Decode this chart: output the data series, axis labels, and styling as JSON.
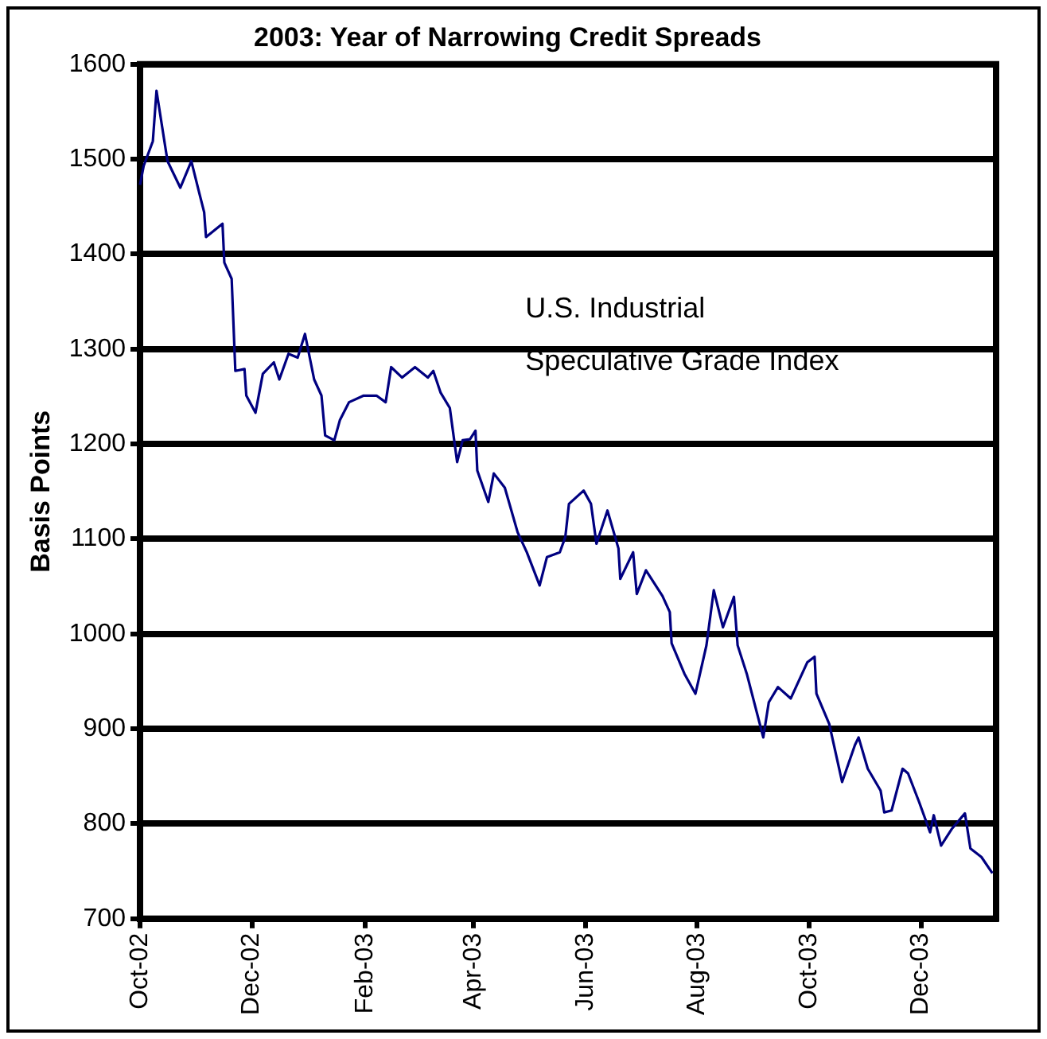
{
  "chart_data": {
    "type": "line",
    "title": "2003: Year of Narrowing Credit Spreads",
    "ylabel": "Basis Points",
    "x": [
      "2002-10-01",
      "2002-10-03",
      "2002-10-08",
      "2002-10-10",
      "2002-10-16",
      "2002-10-23",
      "2002-10-29",
      "2002-11-02",
      "2002-11-05",
      "2002-11-06",
      "2002-11-15",
      "2002-11-16",
      "2002-11-20",
      "2002-11-22",
      "2002-11-27",
      "2002-11-28",
      "2002-12-03",
      "2002-12-07",
      "2002-12-13",
      "2002-12-16",
      "2002-12-21",
      "2002-12-26",
      "2002-12-30",
      "2003-01-04",
      "2003-01-08",
      "2003-01-10",
      "2003-01-15",
      "2003-01-18",
      "2003-01-23",
      "2003-01-31",
      "2003-02-07",
      "2003-02-12",
      "2003-02-15",
      "2003-02-21",
      "2003-02-28",
      "2003-03-07",
      "2003-03-10",
      "2003-03-14",
      "2003-03-19",
      "2003-03-23",
      "2003-03-26",
      "2003-03-30",
      "2003-04-02",
      "2003-04-03",
      "2003-04-09",
      "2003-04-12",
      "2003-04-18",
      "2003-04-25",
      "2003-04-30",
      "2003-05-07",
      "2003-05-11",
      "2003-05-18",
      "2003-05-21",
      "2003-05-23",
      "2003-05-31",
      "2003-06-04",
      "2003-06-07",
      "2003-06-13",
      "2003-06-19",
      "2003-06-20",
      "2003-06-27",
      "2003-06-29",
      "2003-07-04",
      "2003-07-13",
      "2003-07-17",
      "2003-07-18",
      "2003-07-25",
      "2003-07-31",
      "2003-08-06",
      "2003-08-10",
      "2003-08-15",
      "2003-08-21",
      "2003-08-23",
      "2003-08-28",
      "2003-09-06",
      "2003-09-09",
      "2003-09-14",
      "2003-09-21",
      "2003-09-30",
      "2003-10-04",
      "2003-10-05",
      "2003-10-12",
      "2003-10-19",
      "2003-10-26",
      "2003-10-28",
      "2003-11-02",
      "2003-11-09",
      "2003-11-11",
      "2003-11-15",
      "2003-11-21",
      "2003-11-24",
      "2003-11-30",
      "2003-12-06",
      "2003-12-08",
      "2003-12-12",
      "2003-12-18",
      "2003-12-25",
      "2003-12-28",
      "2004-01-03",
      "2004-01-09"
    ],
    "series": [
      {
        "name": "U.S. Industrial Speculative Grade Index",
        "color": "#000080",
        "values": [
          1473,
          1493,
          1519,
          1572,
          1498,
          1470,
          1498,
          1467,
          1444,
          1418,
          1432,
          1391,
          1374,
          1277,
          1279,
          1251,
          1233,
          1274,
          1286,
          1268,
          1295,
          1291,
          1316,
          1268,
          1251,
          1209,
          1204,
          1225,
          1244,
          1251,
          1251,
          1244,
          1281,
          1270,
          1281,
          1270,
          1277,
          1254,
          1238,
          1181,
          1204,
          1205,
          1214,
          1172,
          1139,
          1169,
          1154,
          1107,
          1086,
          1051,
          1081,
          1086,
          1102,
          1137,
          1151,
          1137,
          1095,
          1130,
          1090,
          1058,
          1086,
          1042,
          1067,
          1040,
          1023,
          990,
          958,
          937,
          988,
          1046,
          1007,
          1039,
          988,
          958,
          891,
          928,
          944,
          932,
          970,
          976,
          937,
          905,
          844,
          883,
          891,
          858,
          835,
          812,
          814,
          858,
          853,
          823,
          791,
          809,
          777,
          795,
          811,
          774,
          765,
          748
        ]
      }
    ],
    "xlim": [
      "2002-10-01",
      "2004-01-11"
    ],
    "xticks": [
      {
        "value": "2002-10-01",
        "label": "Oct-02"
      },
      {
        "value": "2002-12-01",
        "label": "Dec-02"
      },
      {
        "value": "2003-02-01",
        "label": "Feb-03"
      },
      {
        "value": "2003-04-01",
        "label": "Apr-03"
      },
      {
        "value": "2003-06-01",
        "label": "Jun-03"
      },
      {
        "value": "2003-08-01",
        "label": "Aug-03"
      },
      {
        "value": "2003-10-01",
        "label": "Oct-03"
      },
      {
        "value": "2003-12-01",
        "label": "Dec-03"
      }
    ],
    "ylim": [
      700,
      1600
    ],
    "yticks": [
      700,
      800,
      900,
      1000,
      1100,
      1200,
      1300,
      1400,
      1500,
      1600
    ],
    "grid": "y",
    "legend": false,
    "marker": "none",
    "line_style": "solid"
  }
}
